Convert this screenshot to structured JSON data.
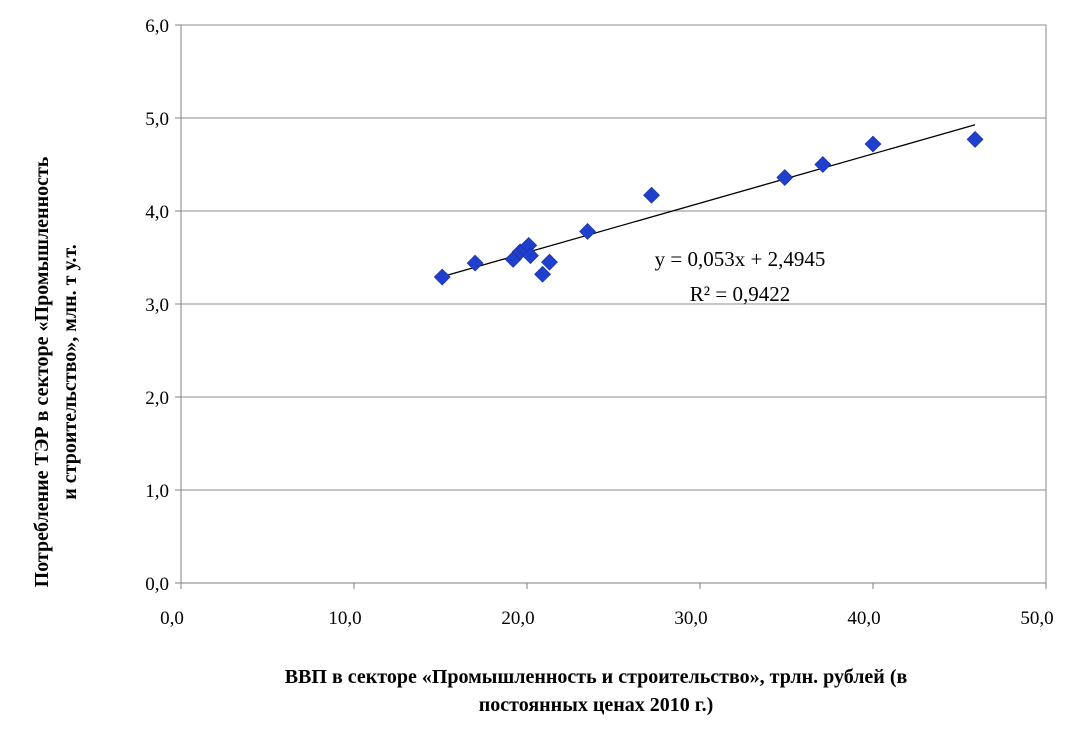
{
  "chart_data": {
    "type": "scatter",
    "xlabel_lines": [
      "ВВП в секторе «Промышленность и строительство», трлн. рублей (в",
      "постоянных ценах 2010 г.)"
    ],
    "ylabel_lines": [
      "Потребление ТЭР в секторе «Промышленность",
      "и строительство», млн. т у.т."
    ],
    "xlim": [
      0,
      50
    ],
    "ylim": [
      0,
      6
    ],
    "x_ticks": [
      0,
      10,
      20,
      30,
      40,
      50
    ],
    "y_ticks": [
      0,
      1,
      2,
      3,
      4,
      5,
      6
    ],
    "x_tick_labels": [
      "0,0",
      "10,0",
      "20,0",
      "30,0",
      "40,0",
      "50,0"
    ],
    "y_tick_labels": [
      "0,0",
      "1,0",
      "2,0",
      "3,0",
      "4,0",
      "5,0",
      "6,0"
    ],
    "grid": "horizontal",
    "marker_color": "#1f3fcf",
    "points": [
      {
        "x": 15.1,
        "y": 3.29
      },
      {
        "x": 17.0,
        "y": 3.44
      },
      {
        "x": 19.2,
        "y": 3.48
      },
      {
        "x": 19.6,
        "y": 3.56
      },
      {
        "x": 19.9,
        "y": 3.59
      },
      {
        "x": 20.1,
        "y": 3.63
      },
      {
        "x": 20.2,
        "y": 3.52
      },
      {
        "x": 20.9,
        "y": 3.32
      },
      {
        "x": 21.3,
        "y": 3.45
      },
      {
        "x": 23.5,
        "y": 3.78
      },
      {
        "x": 27.2,
        "y": 4.17
      },
      {
        "x": 34.9,
        "y": 4.36
      },
      {
        "x": 37.1,
        "y": 4.5
      },
      {
        "x": 40.0,
        "y": 4.72
      },
      {
        "x": 45.9,
        "y": 4.77
      }
    ],
    "trendline": {
      "slope": 0.053,
      "intercept": 2.4945,
      "x_range": [
        15.1,
        45.9
      ]
    },
    "annotations": {
      "equation": "y = 0,053x + 2,4945",
      "r_squared": "R² = 0,9422"
    }
  }
}
